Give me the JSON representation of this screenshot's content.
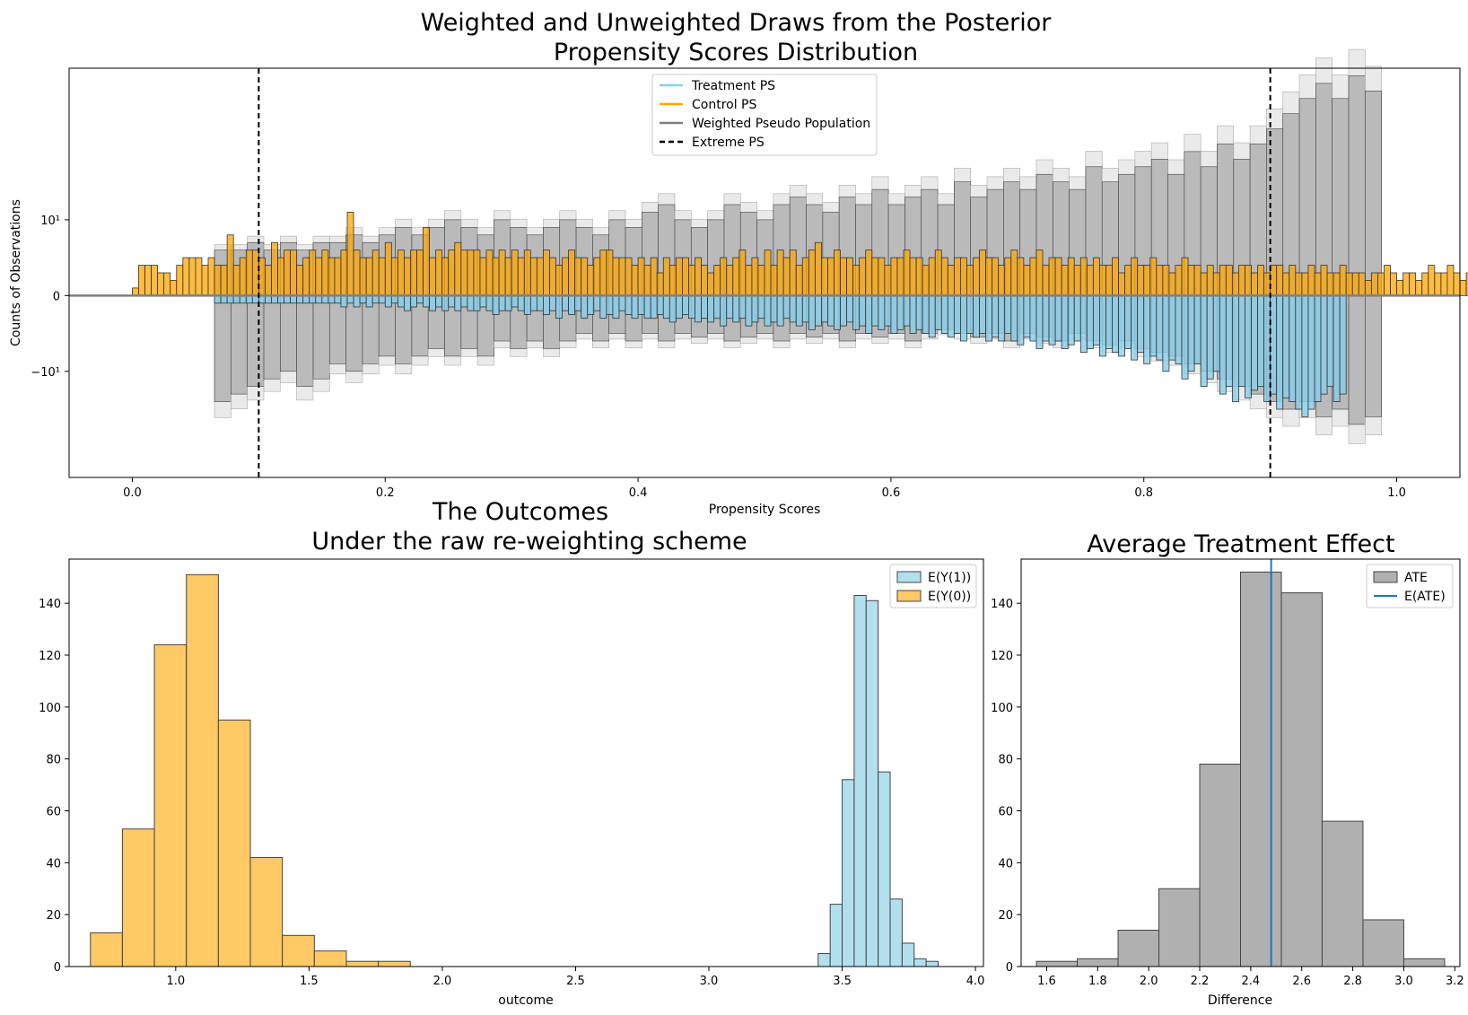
{
  "colors": {
    "treatment": "#87CEEB",
    "control": "#FFA500",
    "control_hist": "#FFC966",
    "treatment_hist": "#B2DFEE",
    "weighted": "#808080",
    "ate_hist": "#B0B0B0",
    "eate_line": "#1f77b4"
  },
  "chart_data": [
    {
      "type": "bar",
      "title_lines": [
        "Weighted and Unweighted Draws from the Posterior",
        "Propensity Scores Distribution"
      ],
      "xlabel": "Propensity Scores",
      "ylabel": "Counts of Observations",
      "xlim": [
        -0.05,
        1.05
      ],
      "ylim_scaled": [
        -2.4,
        3.0
      ],
      "y_scale": "symlog",
      "xticks": [
        0.0,
        0.2,
        0.4,
        0.6,
        0.8,
        1.0
      ],
      "xtick_labels": [
        "0.0",
        "0.2",
        "0.4",
        "0.6",
        "0.8",
        "1.0"
      ],
      "yticks_scaled": [
        1,
        0,
        -1
      ],
      "ytick_labels": [
        "10¹",
        "0",
        "−10¹"
      ],
      "extreme_ps": [
        0.1,
        0.9
      ],
      "legend": {
        "position": "upper center",
        "entries": [
          {
            "label": "Treatment PS",
            "color_key": "treatment",
            "style": "solid"
          },
          {
            "label": "Control PS",
            "color_key": "control",
            "style": "solid"
          },
          {
            "label": "Weighted Pseudo Population",
            "color_key": "weighted",
            "style": "solid"
          },
          {
            "label": "Extreme PS",
            "color_key": "black",
            "style": "dashed"
          }
        ]
      },
      "bin_width": 0.005,
      "notes": "Control PS counts shown above zero, treatment PS counts shown below zero; grey bars are weighted pseudo-population draws. Bar heights are approximate, in symlog-scaled units.",
      "control_start": 0.0,
      "control_scaled": [
        0.1,
        0.4,
        0.4,
        0.4,
        0.3,
        0.3,
        0.2,
        0.4,
        0.5,
        0.5,
        0.5,
        0.4,
        0.5,
        0.4,
        0.4,
        0.8,
        0.4,
        0.5,
        0.6,
        0.6,
        0.5,
        0.4,
        0.7,
        0.5,
        0.6,
        0.6,
        0.4,
        0.5,
        0.6,
        0.5,
        0.6,
        0.5,
        0.5,
        0.6,
        1.1,
        0.6,
        0.5,
        0.5,
        0.6,
        0.5,
        0.7,
        0.5,
        0.6,
        0.5,
        0.6,
        0.6,
        0.9,
        0.5,
        0.6,
        0.5,
        0.6,
        0.7,
        0.6,
        0.6,
        0.6,
        0.5,
        0.6,
        0.5,
        0.6,
        0.5,
        0.6,
        0.5,
        0.6,
        0.5,
        0.5,
        0.6,
        0.5,
        0.4,
        0.5,
        0.6,
        0.5,
        0.5,
        0.4,
        0.5,
        0.6,
        0.6,
        0.5,
        0.5,
        0.5,
        0.4,
        0.5,
        0.4,
        0.5,
        0.3,
        0.5,
        0.4,
        0.5,
        0.5,
        0.4,
        0.5,
        0.4,
        0.3,
        0.4,
        0.5,
        0.4,
        0.5,
        0.6,
        0.4,
        0.5,
        0.4,
        0.6,
        0.4,
        0.6,
        0.5,
        0.6,
        0.4,
        0.5,
        0.6,
        0.7,
        0.5,
        0.5,
        0.6,
        0.5,
        0.5,
        0.4,
        0.5,
        0.6,
        0.5,
        0.5,
        0.4,
        0.5,
        0.5,
        0.6,
        0.5,
        0.5,
        0.4,
        0.5,
        0.6,
        0.5,
        0.4,
        0.5,
        0.5,
        0.4,
        0.5,
        0.6,
        0.5,
        0.5,
        0.4,
        0.5,
        0.6,
        0.5,
        0.4,
        0.5,
        0.6,
        0.4,
        0.5,
        0.5,
        0.4,
        0.5,
        0.4,
        0.5,
        0.4,
        0.5,
        0.4,
        0.4,
        0.5,
        0.3,
        0.4,
        0.5,
        0.4,
        0.4,
        0.5,
        0.4,
        0.4,
        0.3,
        0.4,
        0.5,
        0.4,
        0.4,
        0.3,
        0.4,
        0.3,
        0.4,
        0.4,
        0.3,
        0.4,
        0.4,
        0.3,
        0.4,
        0.3,
        0.4,
        0.4,
        0.3,
        0.4,
        0.3,
        0.3,
        0.4,
        0.3,
        0.4,
        0.3,
        0.3,
        0.4,
        0.3,
        0.3,
        0.3,
        0.2,
        0.3,
        0.3,
        0.4,
        0.3,
        0.2,
        0.3,
        0.3,
        0.2,
        0.3,
        0.4,
        0.3,
        0.3,
        0.4,
        0.3,
        0.2,
        0.3,
        0.3,
        0.2,
        0.2,
        0.1
      ],
      "treatment_start": 0.065,
      "treatment_scaled": [
        -0.1,
        -0.1,
        -0.1,
        -0.1,
        -0.1,
        -0.1,
        -0.1,
        -0.1,
        -0.1,
        -0.1,
        -0.1,
        -0.1,
        -0.1,
        -0.1,
        -0.1,
        -0.1,
        -0.1,
        -0.1,
        -0.1,
        -0.1,
        -0.15,
        -0.1,
        -0.15,
        -0.1,
        -0.15,
        -0.1,
        -0.1,
        -0.15,
        -0.1,
        -0.15,
        -0.2,
        -0.15,
        -0.1,
        -0.15,
        -0.2,
        -0.15,
        -0.2,
        -0.15,
        -0.2,
        -0.15,
        -0.2,
        -0.2,
        -0.15,
        -0.2,
        -0.25,
        -0.2,
        -0.2,
        -0.15,
        -0.2,
        -0.25,
        -0.2,
        -0.2,
        -0.25,
        -0.2,
        -0.3,
        -0.2,
        -0.25,
        -0.2,
        -0.3,
        -0.25,
        -0.2,
        -0.3,
        -0.25,
        -0.3,
        -0.2,
        -0.25,
        -0.3,
        -0.25,
        -0.3,
        -0.3,
        -0.25,
        -0.3,
        -0.35,
        -0.3,
        -0.25,
        -0.3,
        -0.35,
        -0.3,
        -0.35,
        -0.3,
        -0.4,
        -0.3,
        -0.35,
        -0.3,
        -0.4,
        -0.35,
        -0.3,
        -0.4,
        -0.35,
        -0.4,
        -0.3,
        -0.35,
        -0.4,
        -0.35,
        -0.45,
        -0.4,
        -0.35,
        -0.4,
        -0.45,
        -0.4,
        -0.35,
        -0.45,
        -0.4,
        -0.5,
        -0.4,
        -0.45,
        -0.4,
        -0.5,
        -0.45,
        -0.4,
        -0.5,
        -0.45,
        -0.5,
        -0.55,
        -0.45,
        -0.5,
        -0.55,
        -0.5,
        -0.6,
        -0.5,
        -0.55,
        -0.5,
        -0.6,
        -0.55,
        -0.6,
        -0.5,
        -0.6,
        -0.65,
        -0.55,
        -0.6,
        -0.7,
        -0.6,
        -0.65,
        -0.6,
        -0.7,
        -0.65,
        -0.6,
        -0.75,
        -0.7,
        -0.65,
        -0.8,
        -0.7,
        -0.75,
        -0.8,
        -0.7,
        -0.85,
        -0.75,
        -0.9,
        -0.8,
        -0.85,
        -1.0,
        -0.85,
        -0.9,
        -1.1,
        -1.0,
        -0.9,
        -1.2,
        -1.1,
        -1.0,
        -1.3,
        -1.2,
        -1.4,
        -1.2,
        -1.35,
        -1.25,
        -1.2,
        -1.4,
        -1.3,
        -1.5,
        -1.35,
        -1.4,
        -1.5,
        -1.6,
        -1.5,
        -1.4,
        -1.3,
        -1.2,
        -1.4,
        -1.3
      ],
      "weighted_upper": [
        0.6,
        0.6,
        0.7,
        0.6,
        0.7,
        0.6,
        0.7,
        0.7,
        0.8,
        0.7,
        0.8,
        0.9,
        0.8,
        0.9,
        1.0,
        0.9,
        0.8,
        1.0,
        0.9,
        0.8,
        0.9,
        1.0,
        0.9,
        0.8,
        1.0,
        0.9,
        1.1,
        1.2,
        1.0,
        0.9,
        1.0,
        1.2,
        1.1,
        1.0,
        1.2,
        1.3,
        1.2,
        1.1,
        1.3,
        1.2,
        1.4,
        1.2,
        1.3,
        1.4,
        1.2,
        1.5,
        1.3,
        1.4,
        1.5,
        1.4,
        1.6,
        1.5,
        1.4,
        1.7,
        1.5,
        1.6,
        1.7,
        1.8,
        1.6,
        1.9,
        1.7,
        2.0,
        1.8,
        2.0,
        2.2,
        2.4,
        2.6,
        2.8,
        2.6,
        2.9,
        2.7
      ],
      "weighted_lower": [
        -1.4,
        -1.3,
        -1.2,
        -1.1,
        -1.0,
        -1.2,
        -1.1,
        -0.9,
        -1.0,
        -0.9,
        -0.8,
        -0.9,
        -0.8,
        -0.7,
        -0.8,
        -0.7,
        -0.8,
        -0.6,
        -0.7,
        -0.6,
        -0.7,
        -0.6,
        -0.5,
        -0.6,
        -0.5,
        -0.6,
        -0.5,
        -0.6,
        -0.5,
        -0.55,
        -0.5,
        -0.6,
        -0.55,
        -0.5,
        -0.6,
        -0.5,
        -0.55,
        -0.5,
        -0.6,
        -0.5,
        -0.55,
        -0.5,
        -0.6,
        -0.5,
        -0.45,
        -0.5,
        -0.55,
        -0.5,
        -0.6,
        -0.5,
        -0.55,
        -0.6,
        -0.5,
        -0.6,
        -0.65,
        -0.6,
        -0.7,
        -0.75,
        -0.8,
        -0.9,
        -1.0,
        -1.1,
        -1.2,
        -1.3,
        -1.4,
        -1.5,
        -1.4,
        -1.6,
        -1.5,
        -1.7,
        -1.6
      ],
      "weighted_start": 0.065,
      "weighted_width": 0.013
    },
    {
      "type": "bar",
      "title_lines": [
        "The Outcomes",
        "Under the raw re-weighting scheme"
      ],
      "xlabel": "outcome",
      "ylabel": "",
      "xlim": [
        0.6,
        4.03
      ],
      "ylim": [
        0,
        157
      ],
      "xticks": [
        1.0,
        1.5,
        2.0,
        2.5,
        3.0,
        3.5,
        4.0
      ],
      "xtick_labels": [
        "1.0",
        "1.5",
        "2.0",
        "2.5",
        "3.0",
        "3.5",
        "4.0"
      ],
      "yticks": [
        0,
        20,
        40,
        60,
        80,
        100,
        120,
        140
      ],
      "legend": {
        "position": "upper right",
        "entries": [
          {
            "label": "E(Y(1))",
            "color_key": "treatment_hist"
          },
          {
            "label": "E(Y(0))",
            "color_key": "control_hist"
          }
        ]
      },
      "series": [
        {
          "name": "E(Y(0))",
          "bin_edges": [
            0.68,
            0.8,
            0.92,
            1.04,
            1.16,
            1.28,
            1.4,
            1.52,
            1.64,
            1.76,
            1.88
          ],
          "counts": [
            13,
            53,
            124,
            151,
            95,
            42,
            12,
            6,
            2,
            2
          ]
        },
        {
          "name": "E(Y(1))",
          "bin_edges": [
            3.41,
            3.455,
            3.5,
            3.545,
            3.59,
            3.635,
            3.68,
            3.725,
            3.77,
            3.815,
            3.86
          ],
          "counts": [
            5,
            24,
            72,
            143,
            141,
            75,
            26,
            9,
            3,
            2
          ]
        }
      ]
    },
    {
      "type": "bar",
      "title_lines": [
        "Average Treatment Effect"
      ],
      "xlabel": "Difference",
      "ylabel": "",
      "xlim": [
        1.5,
        3.22
      ],
      "ylim": [
        0,
        157
      ],
      "xticks": [
        1.6,
        1.8,
        2.0,
        2.2,
        2.4,
        2.6,
        2.8,
        3.0,
        3.2
      ],
      "xtick_labels": [
        "1.6",
        "1.8",
        "2.0",
        "2.2",
        "2.4",
        "2.6",
        "2.8",
        "3.0",
        "3.2"
      ],
      "yticks": [
        0,
        20,
        40,
        60,
        80,
        100,
        120,
        140
      ],
      "legend": {
        "position": "upper right",
        "entries": [
          {
            "label": "ATE",
            "color_key": "ate_hist"
          },
          {
            "label": "E(ATE)",
            "color_key": "eate_line"
          }
        ]
      },
      "series": [
        {
          "name": "ATE",
          "bin_edges": [
            1.56,
            1.72,
            1.88,
            2.04,
            2.2,
            2.36,
            2.52,
            2.68,
            2.84,
            3.0,
            3.16
          ],
          "counts": [
            2,
            3,
            14,
            30,
            78,
            152,
            144,
            56,
            18,
            3
          ]
        }
      ],
      "e_ate": 2.48
    }
  ]
}
